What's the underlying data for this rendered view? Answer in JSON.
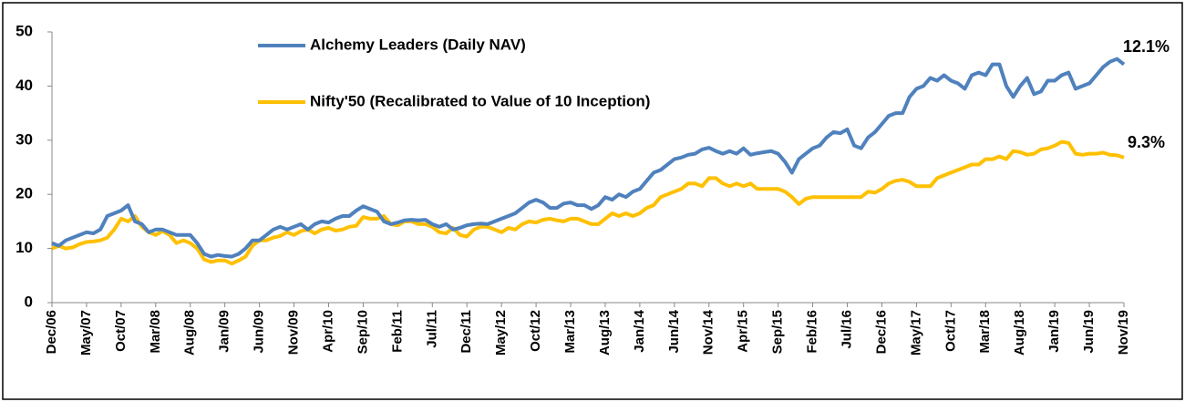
{
  "chart_data": {
    "type": "line",
    "categories": [
      "Dec/06",
      null,
      null,
      null,
      null,
      "May/07",
      null,
      null,
      null,
      null,
      "Oct/07",
      null,
      null,
      null,
      null,
      "Mar/08",
      null,
      null,
      null,
      null,
      "Aug/08",
      null,
      null,
      null,
      null,
      "Jan/09",
      null,
      null,
      null,
      null,
      "Jun/09",
      null,
      null,
      null,
      null,
      "Nov/09",
      null,
      null,
      null,
      null,
      "Apr/10",
      null,
      null,
      null,
      null,
      "Sep/10",
      null,
      null,
      null,
      null,
      "Feb/11",
      null,
      null,
      null,
      null,
      "Jul/11",
      null,
      null,
      null,
      null,
      "Dec/11",
      null,
      null,
      null,
      null,
      "May/12",
      null,
      null,
      null,
      null,
      "Oct/12",
      null,
      null,
      null,
      null,
      "Mar/13",
      null,
      null,
      null,
      null,
      "Aug/13",
      null,
      null,
      null,
      null,
      "Jan/14",
      null,
      null,
      null,
      null,
      "Jun/14",
      null,
      null,
      null,
      null,
      "Nov/14",
      null,
      null,
      null,
      null,
      "Apr/15",
      null,
      null,
      null,
      null,
      "Sep/15",
      null,
      null,
      null,
      null,
      "Feb/16",
      null,
      null,
      null,
      null,
      "Jul/16",
      null,
      null,
      null,
      null,
      "Dec/16",
      null,
      null,
      null,
      null,
      "May/17",
      null,
      null,
      null,
      null,
      "Oct/17",
      null,
      null,
      null,
      null,
      "Mar/18",
      null,
      null,
      null,
      null,
      "Aug/18",
      null,
      null,
      null,
      null,
      "Jan/19",
      null,
      null,
      null,
      null,
      "Jun/19",
      null,
      null,
      null,
      null,
      "Nov/19"
    ],
    "series": [
      {
        "name": "Alchemy Leaders (Daily NAV)",
        "color": "#4f81bd",
        "values": [
          11,
          10.5,
          11.5,
          12,
          12.5,
          13,
          12.8,
          13.5,
          16,
          16.5,
          17,
          18,
          15,
          14.5,
          13,
          13.5,
          13.5,
          13,
          12.5,
          12.5,
          12.5,
          11,
          9,
          8.5,
          8.8,
          8.6,
          8.5,
          9,
          10,
          11.5,
          11.5,
          12.5,
          13.5,
          14,
          13.5,
          14,
          14.5,
          13.5,
          14.5,
          15,
          14.8,
          15.5,
          16,
          16,
          17,
          17.8,
          17.3,
          16.8,
          15,
          14.5,
          14.8,
          15.2,
          15.3,
          15.2,
          15.3,
          14.5,
          14,
          14.5,
          13.5,
          13.8,
          14.3,
          14.5,
          14.6,
          14.5,
          15,
          15.5,
          16,
          16.5,
          17.5,
          18.5,
          19,
          18.5,
          17.5,
          17.5,
          18.3,
          18.5,
          18,
          18,
          17.3,
          18,
          19.5,
          19,
          20,
          19.5,
          20.5,
          21,
          22.5,
          24,
          24.5,
          25.5,
          26.5,
          26.8,
          27.3,
          27.5,
          28.3,
          28.6,
          28,
          27.5,
          28,
          27.5,
          28.5,
          27.3,
          27.6,
          27.8,
          28,
          27.5,
          26,
          24,
          26.5,
          27.5,
          28.5,
          29,
          30.5,
          31.5,
          31.3,
          32,
          29,
          28.5,
          30.5,
          31.5,
          33,
          34.5,
          35,
          35,
          38,
          39.5,
          40,
          41.5,
          41,
          42,
          41,
          40.5,
          39.5,
          42,
          42.5,
          42,
          44,
          44,
          40,
          38,
          40,
          41.5,
          38.5,
          39,
          41,
          41,
          42,
          42.5,
          39.5,
          40,
          40.5,
          42,
          43.5,
          44.5,
          45,
          44
        ]
      },
      {
        "name": "Nifty'50 (Recalibrated to Value of 10 Inception)",
        "color": "#ffc000",
        "values": [
          10,
          10.5,
          10,
          10.2,
          10.8,
          11.2,
          11.3,
          11.5,
          12,
          13.5,
          15.5,
          15,
          16,
          14,
          13,
          12.5,
          13.2,
          12.5,
          11,
          11.5,
          11,
          10,
          8,
          7.5,
          7.8,
          7.8,
          7.2,
          7.8,
          8.5,
          10.5,
          11.5,
          11.5,
          12,
          12.3,
          13,
          12.5,
          13.2,
          13.5,
          12.8,
          13.5,
          13.8,
          13.3,
          13.5,
          14,
          14.2,
          15.8,
          15.5,
          15.5,
          16,
          14.5,
          14.3,
          15,
          15,
          14.5,
          14.5,
          14,
          13,
          12.8,
          13.8,
          12.5,
          12.2,
          13.5,
          14,
          14,
          13.5,
          13,
          13.8,
          13.5,
          14.5,
          15,
          14.8,
          15.3,
          15.5,
          15.2,
          15,
          15.5,
          15.5,
          15,
          14.5,
          14.5,
          15.5,
          16.5,
          16,
          16.5,
          16,
          16.5,
          17.5,
          18,
          19.5,
          20,
          20.5,
          21,
          22,
          22,
          21.5,
          23,
          23,
          22,
          21.5,
          22,
          21.5,
          22,
          21,
          21,
          21,
          21,
          20.5,
          19.5,
          18.2,
          19.2,
          19.5,
          19.5,
          19.5,
          19.5,
          19.5,
          19.5,
          19.5,
          19.5,
          20.5,
          20.3,
          21,
          22,
          22.5,
          22.7,
          22.3,
          21.5,
          21.5,
          21.5,
          23,
          23.5,
          24,
          24.5,
          25,
          25.5,
          25.5,
          26.5,
          26.5,
          27,
          26.5,
          28,
          27.8,
          27.3,
          27.5,
          28.3,
          28.5,
          29,
          29.7,
          29.5,
          27.5,
          27.3,
          27.5,
          27.5,
          27.7,
          27.3,
          27.2,
          26.8
        ]
      }
    ],
    "annotations": [
      "12.1%",
      "9.3%"
    ],
    "ylim": [
      0,
      50
    ],
    "yticks": [
      0,
      10,
      20,
      30,
      40,
      50
    ],
    "grid": false
  }
}
